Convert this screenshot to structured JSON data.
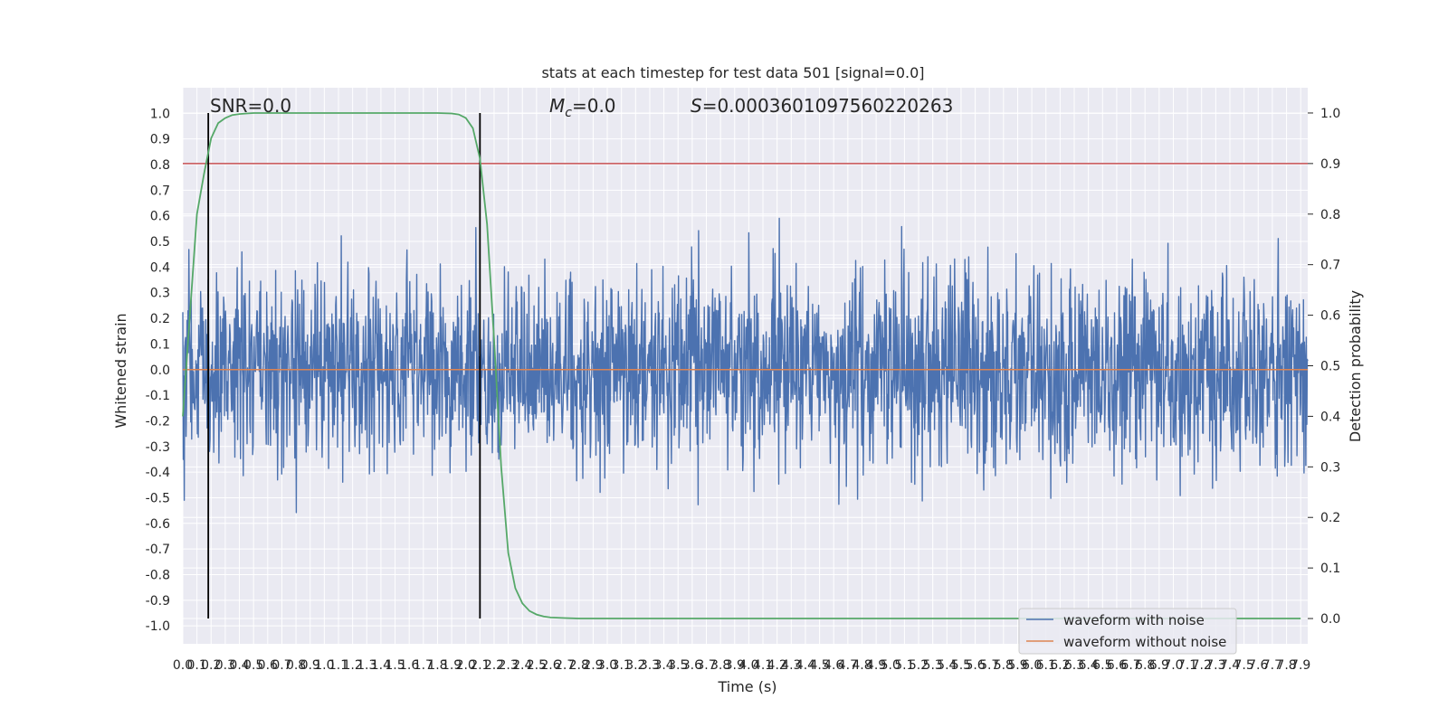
{
  "chart_data": {
    "type": "line",
    "title": "stats at each timestep for test data 501 [signal=0.0]",
    "xlabel": "Time (s)",
    "ylabel": "Whitened strain",
    "ylabel_right": "Detection probability",
    "xlim": [
      0.0,
      7.95
    ],
    "ylim": [
      -1.07,
      1.1
    ],
    "ylim_right": [
      -0.05,
      1.05
    ],
    "x_ticks": [
      "0.0",
      "0.1",
      "0.2",
      "0.3",
      "0.4",
      "0.5",
      "0.6",
      "0.7",
      "0.8",
      "0.9",
      "1.0",
      "1.1",
      "1.2",
      "1.3",
      "1.4",
      "1.5",
      "1.6",
      "1.7",
      "1.8",
      "1.9",
      "2.0",
      "2.1",
      "2.2",
      "2.3",
      "2.4",
      "2.5",
      "2.6",
      "2.7",
      "2.8",
      "2.9",
      "3.0",
      "3.1",
      "3.2",
      "3.3",
      "3.4",
      "3.5",
      "3.6",
      "3.7",
      "3.8",
      "3.9",
      "4.0",
      "4.1",
      "4.2",
      "4.3",
      "4.4",
      "4.5",
      "4.6",
      "4.7",
      "4.8",
      "4.9",
      "5.0",
      "5.1",
      "5.2",
      "5.3",
      "5.4",
      "5.5",
      "5.6",
      "5.7",
      "5.8",
      "5.9",
      "6.0",
      "6.1",
      "6.2",
      "6.3",
      "6.4",
      "6.5",
      "6.6",
      "6.7",
      "6.8",
      "6.9",
      "7.0",
      "7.1",
      "7.2",
      "7.3",
      "7.4",
      "7.5",
      "7.6",
      "7.7",
      "7.8",
      "7.9"
    ],
    "y_ticks_left": [
      "1.0",
      "0.9",
      "0.8",
      "0.7",
      "0.6",
      "0.5",
      "0.4",
      "0.3",
      "0.2",
      "0.1",
      "0.0",
      "-0.1",
      "-0.2",
      "-0.3",
      "-0.4",
      "-0.5",
      "-0.6",
      "-0.7",
      "-0.8",
      "-0.9",
      "-1.0"
    ],
    "y_ticks_right": [
      "1.0",
      "0.9",
      "0.8",
      "0.7",
      "0.6",
      "0.5",
      "0.4",
      "0.3",
      "0.2",
      "0.1",
      "0.0"
    ],
    "annotations": {
      "snr": "SNR=0.0",
      "mc_symbol": "M",
      "mc_sub": "c",
      "mc_value": "=0.0",
      "s_symbol": "S",
      "s_value": "=0.0003601097560220263"
    },
    "threshold": {
      "y_right": 0.9,
      "color": "#c44e52"
    },
    "vertical_markers": [
      0.18,
      2.1
    ],
    "grid": true,
    "legend_position": "lower-right",
    "series": [
      {
        "name": "waveform with noise",
        "color": "#4c72b0",
        "kind": "noise",
        "amplitude_range": [
          -0.97,
          1.0
        ]
      },
      {
        "name": "waveform without noise",
        "color": "#dd8452",
        "values_constant": 0.0
      },
      {
        "color": "#55a868",
        "axis": "right",
        "x": [
          0.0,
          0.05,
          0.1,
          0.15,
          0.2,
          0.25,
          0.3,
          0.35,
          0.4,
          0.45,
          0.5,
          0.6,
          0.8,
          1.0,
          1.5,
          1.8,
          1.9,
          1.95,
          2.0,
          2.05,
          2.1,
          2.15,
          2.2,
          2.25,
          2.3,
          2.35,
          2.4,
          2.45,
          2.5,
          2.55,
          2.6,
          2.7,
          2.8,
          3.0,
          4.0,
          5.0,
          6.0,
          7.0,
          7.9
        ],
        "y": [
          0.4,
          0.6,
          0.8,
          0.88,
          0.95,
          0.98,
          0.99,
          0.996,
          0.998,
          0.999,
          1.0,
          1.0,
          1.0,
          1.0,
          1.0,
          1.0,
          0.999,
          0.997,
          0.99,
          0.97,
          0.91,
          0.78,
          0.55,
          0.3,
          0.13,
          0.06,
          0.03,
          0.015,
          0.008,
          0.004,
          0.002,
          0.001,
          0.0,
          0.0,
          0.0,
          0.0,
          0.0,
          0.0,
          0.0
        ]
      }
    ]
  }
}
